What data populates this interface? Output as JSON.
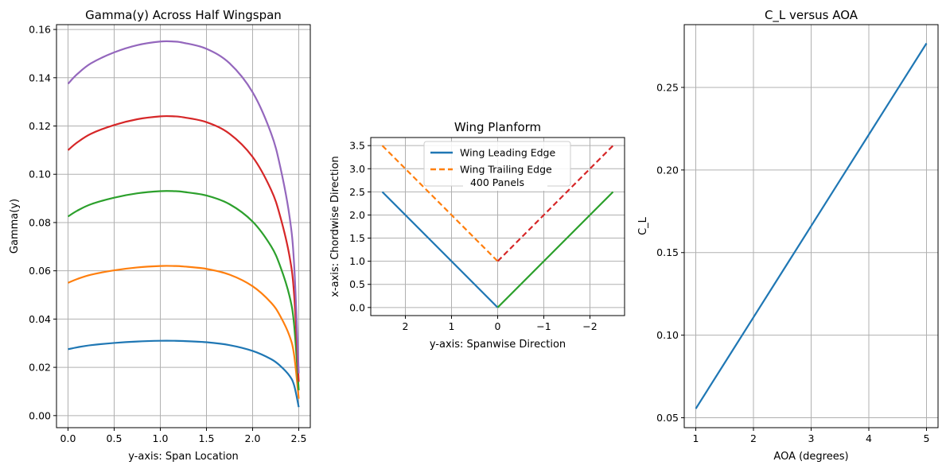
{
  "chart_data": [
    {
      "type": "line",
      "title": "Gamma(y) Across Half Wingspan",
      "xlabel": "y-axis: Span Location",
      "ylabel": "Gamma(y)",
      "xlim": [
        -0.125,
        2.625
      ],
      "ylim": [
        -0.005,
        0.162
      ],
      "xticks": [
        0.0,
        0.5,
        1.0,
        1.5,
        2.0,
        2.5
      ],
      "xtick_labels": [
        "0.0",
        "0.5",
        "1.0",
        "1.5",
        "2.0",
        "2.5"
      ],
      "yticks": [
        0.0,
        0.02,
        0.04,
        0.06,
        0.08,
        0.1,
        0.12,
        0.14,
        0.16
      ],
      "ytick_labels": [
        "0.00",
        "0.02",
        "0.04",
        "0.06",
        "0.08",
        "0.10",
        "0.12",
        "0.14",
        "0.16"
      ],
      "grid": true,
      "x": [
        0.0,
        0.1,
        0.25,
        0.5,
        0.75,
        1.0,
        1.15,
        1.25,
        1.5,
        1.75,
        2.0,
        2.2,
        2.3,
        2.4,
        2.45,
        2.5
      ],
      "series": [
        {
          "color": "#1f77b4",
          "values": [
            0.0275,
            0.0283,
            0.0292,
            0.0301,
            0.0307,
            0.031,
            0.031,
            0.0309,
            0.0304,
            0.0292,
            0.0268,
            0.0234,
            0.0206,
            0.0165,
            0.0125,
            0.0035
          ]
        },
        {
          "color": "#ff7f0e",
          "values": [
            0.055,
            0.0566,
            0.0584,
            0.0602,
            0.0614,
            0.062,
            0.062,
            0.0618,
            0.0608,
            0.0584,
            0.0536,
            0.0468,
            0.0412,
            0.033,
            0.025,
            0.007
          ]
        },
        {
          "color": "#2ca02c",
          "values": [
            0.0825,
            0.0849,
            0.0876,
            0.0903,
            0.0921,
            0.093,
            0.093,
            0.0927,
            0.0912,
            0.0876,
            0.0804,
            0.0702,
            0.0618,
            0.0495,
            0.0375,
            0.0105
          ]
        },
        {
          "color": "#d62728",
          "values": [
            0.11,
            0.1132,
            0.1168,
            0.1204,
            0.1228,
            0.124,
            0.124,
            0.1236,
            0.1216,
            0.1168,
            0.1072,
            0.0936,
            0.0824,
            0.066,
            0.05,
            0.014
          ]
        },
        {
          "color": "#9467bd",
          "values": [
            0.1375,
            0.1415,
            0.146,
            0.1505,
            0.1535,
            0.155,
            0.155,
            0.1545,
            0.152,
            0.146,
            0.134,
            0.117,
            0.103,
            0.0825,
            0.0625,
            0.0175
          ]
        }
      ]
    },
    {
      "type": "line",
      "title": "Wing Planform",
      "xlabel": "y-axis: Spanwise Direction",
      "ylabel": "x-axis: Chordwise Direction",
      "xlim": [
        2.75,
        -2.75
      ],
      "ylim": [
        -0.175,
        3.675
      ],
      "xticks": [
        2,
        1,
        0,
        -1,
        -2
      ],
      "xtick_labels": [
        "2",
        "1",
        "0",
        "−1",
        "−2"
      ],
      "yticks": [
        0.0,
        0.5,
        1.0,
        1.5,
        2.0,
        2.5,
        3.0,
        3.5
      ],
      "ytick_labels": [
        "0.0",
        "0.5",
        "1.0",
        "1.5",
        "2.0",
        "2.5",
        "3.0",
        "3.5"
      ],
      "grid": true,
      "annotation": "400 Panels",
      "series": [
        {
          "name": "Wing Leading Edge",
          "color": "#1f77b4",
          "style": "solid",
          "x": [
            2.5,
            0
          ],
          "values": [
            2.5,
            0
          ]
        },
        {
          "name": "Wing Trailing Edge",
          "color": "#ff7f0e",
          "style": "dashed",
          "x": [
            2.5,
            0
          ],
          "values": [
            3.5,
            1.0
          ]
        },
        {
          "color": "#2ca02c",
          "style": "solid",
          "x": [
            0,
            -2.5
          ],
          "values": [
            0,
            2.5
          ]
        },
        {
          "color": "#d62728",
          "style": "dashed",
          "x": [
            0,
            -2.5
          ],
          "values": [
            1.0,
            3.5
          ]
        }
      ],
      "legend": "top-center"
    },
    {
      "type": "line",
      "title": "C_L versus AOA",
      "xlabel": "AOA (degrees)",
      "ylabel": "C_L",
      "xlim": [
        0.8,
        5.2
      ],
      "ylim": [
        0.044,
        0.288
      ],
      "xticks": [
        1,
        2,
        3,
        4,
        5
      ],
      "xtick_labels": [
        "1",
        "2",
        "3",
        "4",
        "5"
      ],
      "yticks": [
        0.05,
        0.1,
        0.15,
        0.2,
        0.25
      ],
      "ytick_labels": [
        "0.05",
        "0.10",
        "0.15",
        "0.20",
        "0.25"
      ],
      "grid": true,
      "series": [
        {
          "color": "#1f77b4",
          "x": [
            1,
            2,
            3,
            4,
            5
          ],
          "values": [
            0.0555,
            0.1108,
            0.1661,
            0.2214,
            0.2767
          ]
        }
      ]
    }
  ]
}
